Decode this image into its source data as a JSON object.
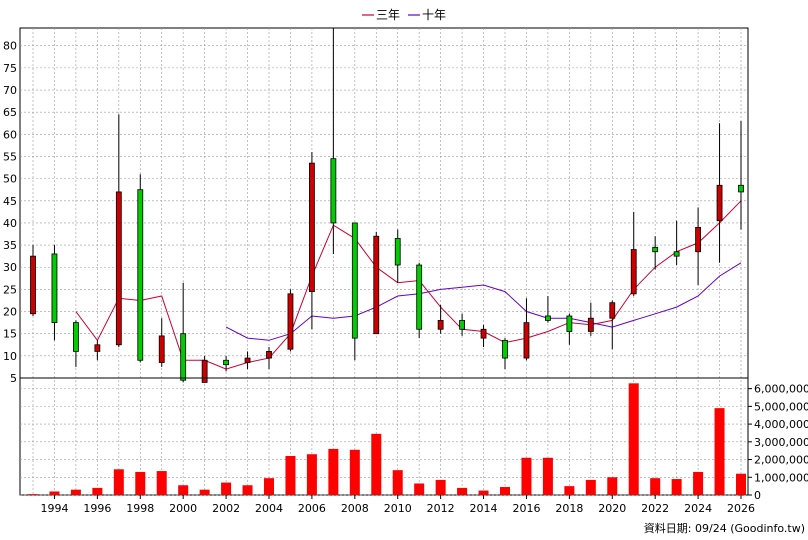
{
  "legend": {
    "three_year": "三年",
    "ten_year": "十年"
  },
  "footer": "資料日期: 09/24  (Goodinfo.tw)",
  "colors": {
    "up_candle": "#00cc00",
    "down_candle": "#cc0000",
    "volume_bar": "#ff0000",
    "three_year_line": "#cc0033",
    "ten_year_line": "#6600cc",
    "grid": "#999999"
  },
  "chart_data": [
    {
      "type": "candlestick",
      "title": "",
      "ylim": [
        5,
        84
      ],
      "y_ticks": [
        5,
        10,
        15,
        20,
        25,
        30,
        35,
        40,
        45,
        50,
        55,
        60,
        65,
        70,
        75,
        80
      ],
      "x_ticks": [
        "1994",
        "1996",
        "1998",
        "2000",
        "2002",
        "2004",
        "2006",
        "2008",
        "2010",
        "2012",
        "2014",
        "2016",
        "2018",
        "2020",
        "2022",
        "2024",
        "2026"
      ],
      "grid": true,
      "legend_position": "top-center",
      "candles": [
        {
          "year": 1993,
          "open": 32.5,
          "high": 35,
          "low": 19,
          "close": 19.5
        },
        {
          "year": 1994,
          "open": 17.5,
          "high": 35,
          "low": 13.5,
          "close": 33
        },
        {
          "year": 1995,
          "open": 11,
          "high": 18,
          "low": 7.5,
          "close": 17.5
        },
        {
          "year": 1996,
          "open": 12.5,
          "high": 13.5,
          "low": 9,
          "close": 11
        },
        {
          "year": 1997,
          "open": 47,
          "high": 64.5,
          "low": 12,
          "close": 12.5
        },
        {
          "year": 1998,
          "open": 9,
          "high": 51,
          "low": 8.5,
          "close": 47.5
        },
        {
          "year": 1999,
          "open": 14.5,
          "high": 18.5,
          "low": 7.5,
          "close": 8.5
        },
        {
          "year": 2000,
          "open": 4.5,
          "high": 26.5,
          "low": 4,
          "close": 15
        },
        {
          "year": 2001,
          "open": 9,
          "high": 10,
          "low": 4,
          "close": 4
        },
        {
          "year": 2002,
          "open": 8,
          "high": 10,
          "low": 6.5,
          "close": 9
        },
        {
          "year": 2003,
          "open": 9.5,
          "high": 11,
          "low": 7,
          "close": 8.5
        },
        {
          "year": 2004,
          "open": 11,
          "high": 12,
          "low": 7,
          "close": 9.5
        },
        {
          "year": 2005,
          "open": 24,
          "high": 25,
          "low": 11,
          "close": 11.5
        },
        {
          "year": 2006,
          "open": 53.5,
          "high": 56,
          "low": 16,
          "close": 24.5
        },
        {
          "year": 2007,
          "open": 40,
          "high": 84,
          "low": 33,
          "close": 54.5
        },
        {
          "year": 2008,
          "open": 14,
          "high": 40,
          "low": 9,
          "close": 40
        },
        {
          "year": 2009,
          "open": 37,
          "high": 38,
          "low": 15,
          "close": 15
        },
        {
          "year": 2010,
          "open": 30.5,
          "high": 38.5,
          "low": 26.5,
          "close": 36.5
        },
        {
          "year": 2011,
          "open": 16,
          "high": 31,
          "low": 14,
          "close": 30.5
        },
        {
          "year": 2012,
          "open": 18,
          "high": 21.5,
          "low": 15,
          "close": 16
        },
        {
          "year": 2013,
          "open": 16,
          "high": 19.5,
          "low": 14.5,
          "close": 18
        },
        {
          "year": 2014,
          "open": 16,
          "high": 17,
          "low": 12,
          "close": 14
        },
        {
          "year": 2015,
          "open": 9.5,
          "high": 14,
          "low": 7,
          "close": 13.5
        },
        {
          "year": 2016,
          "open": 17.5,
          "high": 23,
          "low": 9,
          "close": 9.5
        },
        {
          "year": 2017,
          "open": 18,
          "high": 23.5,
          "low": 17.5,
          "close": 19
        },
        {
          "year": 2018,
          "open": 15.5,
          "high": 19.5,
          "low": 12.5,
          "close": 19
        },
        {
          "year": 2019,
          "open": 18.5,
          "high": 22,
          "low": 14.5,
          "close": 15.5
        },
        {
          "year": 2020,
          "open": 22,
          "high": 22.5,
          "low": 11.5,
          "close": 18.5
        },
        {
          "year": 2021,
          "open": 34,
          "high": 42.5,
          "low": 23.5,
          "close": 24
        },
        {
          "year": 2022,
          "open": 33.5,
          "high": 37,
          "low": 29.5,
          "close": 34.5
        },
        {
          "year": 2023,
          "open": 32.5,
          "high": 40.5,
          "low": 30.5,
          "close": 33.5
        },
        {
          "year": 2024,
          "open": 39,
          "high": 43.5,
          "low": 26,
          "close": 33.5
        },
        {
          "year": 2025,
          "open": 48.5,
          "high": 62.5,
          "low": 31,
          "close": 40.5
        },
        {
          "year": 2026,
          "open": 47,
          "high": 63,
          "low": 38.5,
          "close": 48.5
        }
      ],
      "series": [
        {
          "name": "三年",
          "x": [
            1995,
            1996,
            1997,
            1998,
            1999,
            2000,
            2001,
            2002,
            2003,
            2004,
            2005,
            2006,
            2007,
            2008,
            2009,
            2010,
            2011,
            2012,
            2013,
            2014,
            2015,
            2016,
            2017,
            2018,
            2019,
            2020,
            2021,
            2022,
            2023,
            2024,
            2025,
            2026
          ],
          "values": [
            20,
            13.5,
            23,
            22.5,
            23.5,
            9,
            9,
            7,
            8.5,
            9.5,
            15,
            28,
            39.5,
            36.5,
            30,
            26.5,
            27,
            21,
            16,
            15.5,
            13,
            14,
            15.5,
            17.5,
            17,
            18,
            25,
            30,
            33.5,
            35.5,
            40,
            45
          ]
        },
        {
          "name": "十年",
          "x": [
            2002,
            2003,
            2004,
            2005,
            2006,
            2007,
            2008,
            2009,
            2010,
            2011,
            2012,
            2013,
            2014,
            2015,
            2016,
            2017,
            2018,
            2019,
            2020,
            2021,
            2022,
            2023,
            2024,
            2025,
            2026
          ],
          "values": [
            16.5,
            14,
            13.5,
            15,
            19,
            18.5,
            19,
            21,
            23.5,
            24,
            25,
            25.5,
            26,
            24.5,
            20,
            18.5,
            18.5,
            17.5,
            16.5,
            18,
            19.5,
            21,
            23.5,
            28,
            31
          ]
        }
      ]
    },
    {
      "type": "bar",
      "title": "",
      "ylim": [
        0,
        6600000
      ],
      "y_ticks": [
        0,
        1000000,
        2000000,
        3000000,
        4000000,
        5000000,
        6000000
      ],
      "y_tick_labels": [
        "0",
        "1,000,000",
        "2,000,000",
        "3,000,000",
        "4,000,000",
        "5,000,000",
        "6,000,000"
      ],
      "grid": true,
      "categories": [
        1993,
        1994,
        1995,
        1996,
        1997,
        1998,
        1999,
        2000,
        2001,
        2002,
        2003,
        2004,
        2005,
        2006,
        2007,
        2008,
        2009,
        2010,
        2011,
        2012,
        2013,
        2014,
        2015,
        2016,
        2017,
        2018,
        2019,
        2020,
        2021,
        2022,
        2023,
        2024,
        2025,
        2026
      ],
      "values": [
        50000,
        200000,
        300000,
        400000,
        1450000,
        1300000,
        1350000,
        550000,
        300000,
        700000,
        550000,
        950000,
        2200000,
        2300000,
        2600000,
        2550000,
        3450000,
        1400000,
        650000,
        850000,
        400000,
        250000,
        450000,
        2100000,
        2100000,
        500000,
        850000,
        1000000,
        6300000,
        950000,
        900000,
        1300000,
        4900000,
        1200000
      ]
    }
  ]
}
